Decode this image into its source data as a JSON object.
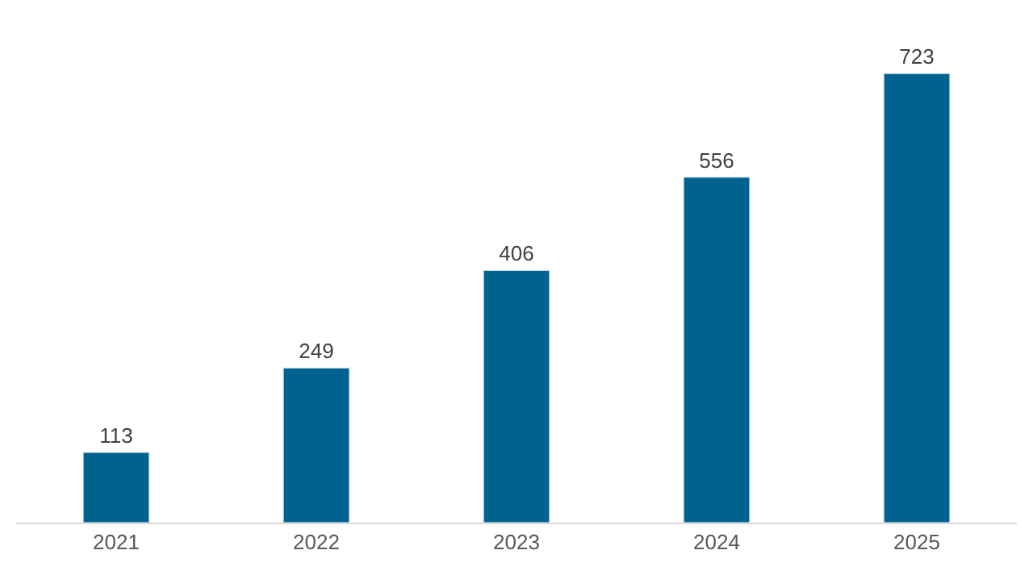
{
  "chart_data": {
    "type": "bar",
    "categories": [
      "2021",
      "2022",
      "2023",
      "2024",
      "2025"
    ],
    "values": [
      113,
      249,
      406,
      556,
      723
    ],
    "color": "#00628f",
    "data_labels": true
  }
}
